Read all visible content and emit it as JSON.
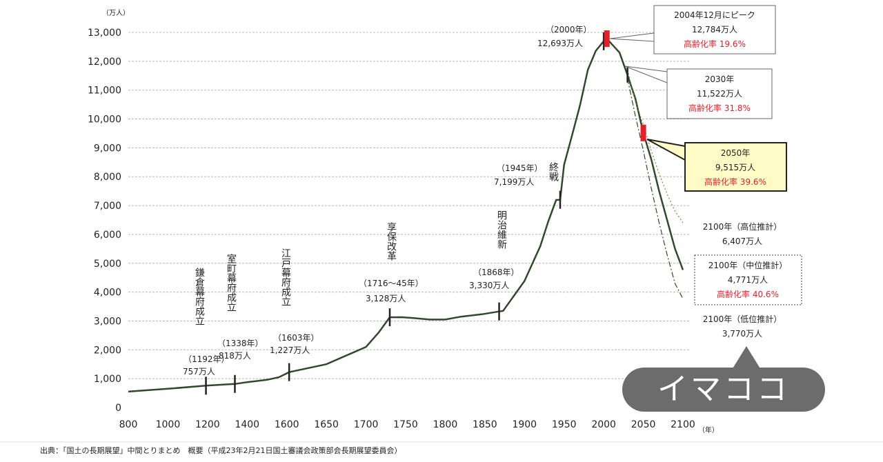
{
  "chart_data": {
    "type": "line",
    "ylabel_unit": "（万人）",
    "xlabel_unit": "（年）",
    "x_ticks": [
      "800",
      "1000",
      "1200",
      "1400",
      "1600",
      "1650",
      "1700",
      "1750",
      "1800",
      "1850",
      "1900",
      "1950",
      "2000",
      "2050",
      "2100"
    ],
    "y_ticks": [
      "0",
      "1,000",
      "2,000",
      "3,000",
      "4,000",
      "5,000",
      "6,000",
      "7,000",
      "8,000",
      "9,000",
      "10,000",
      "11,000",
      "12,000",
      "13,000"
    ],
    "ylim": [
      0,
      13000
    ],
    "grid": true,
    "series": [
      {
        "style": "solid",
        "points": [
          [
            800,
            551
          ],
          [
            1000,
            650
          ],
          [
            1192,
            757
          ],
          [
            1338,
            818
          ],
          [
            1400,
            880
          ],
          [
            1500,
            960
          ],
          [
            1560,
            1050
          ],
          [
            1603,
            1227
          ],
          [
            1650,
            1500
          ],
          [
            1700,
            2100
          ],
          [
            1716,
            2600
          ],
          [
            1730,
            3128
          ],
          [
            1745,
            3130
          ],
          [
            1760,
            3100
          ],
          [
            1780,
            3050
          ],
          [
            1800,
            3050
          ],
          [
            1820,
            3150
          ],
          [
            1846,
            3230
          ],
          [
            1868,
            3330
          ],
          [
            1873,
            3350
          ],
          [
            1890,
            4000
          ],
          [
            1900,
            4385
          ],
          [
            1920,
            5596
          ],
          [
            1930,
            6445
          ],
          [
            1940,
            7193
          ],
          [
            1945,
            7199
          ],
          [
            1950,
            8411
          ],
          [
            1960,
            9430
          ],
          [
            1970,
            10467
          ],
          [
            1980,
            11706
          ],
          [
            1990,
            12361
          ],
          [
            2000,
            12693
          ],
          [
            2004,
            12784
          ],
          [
            2010,
            12600
          ],
          [
            2020,
            12300
          ],
          [
            2030,
            11522
          ],
          [
            2040,
            10700
          ],
          [
            2050,
            9515
          ],
          [
            2060,
            8600
          ],
          [
            2070,
            7500
          ],
          [
            2080,
            6500
          ],
          [
            2090,
            5500
          ],
          [
            2100,
            4771
          ]
        ]
      },
      {
        "style": "dotted",
        "points": [
          [
            2030,
            11700
          ],
          [
            2040,
            10600
          ],
          [
            2050,
            9800
          ],
          [
            2060,
            8900
          ],
          [
            2070,
            8100
          ],
          [
            2080,
            7400
          ],
          [
            2090,
            6800
          ],
          [
            2100,
            6407
          ]
        ]
      },
      {
        "style": "dashdot",
        "points": [
          [
            2030,
            11400
          ],
          [
            2040,
            10100
          ],
          [
            2050,
            8900
          ],
          [
            2060,
            7600
          ],
          [
            2070,
            6400
          ],
          [
            2080,
            5300
          ],
          [
            2090,
            4300
          ],
          [
            2100,
            3770
          ]
        ]
      }
    ],
    "events": [
      {
        "label": "鎌倉幕府成立",
        "year_text": "（1192年）",
        "value_text": "757万人"
      },
      {
        "label": "室町幕府成立",
        "year_text": "（1338年）",
        "value_text": "818万人"
      },
      {
        "label": "江戸幕府成立",
        "year_text": "（1603年）",
        "value_text": "1,227万人"
      },
      {
        "label": "享保改革",
        "year_text": "（1716〜45年）",
        "value_text": "3,128万人"
      },
      {
        "label": "明治維新",
        "year_text": "（1868年）",
        "value_text": "3,330万人"
      },
      {
        "label": "終戦",
        "year_text": "（1945年）",
        "value_text": "7,199万人"
      },
      {
        "label": "",
        "year_text": "（2000年）",
        "value_text": "12,693万人"
      }
    ],
    "callouts": {
      "peak": {
        "line1": "2004年12月にピーク",
        "line2": "12,784万人",
        "line3": "高齢化率 19.6%"
      },
      "y2030": {
        "line1": "2030年",
        "line2": "11,522万人",
        "line3": "高齢化率 31.8%"
      },
      "y2050": {
        "line1": "2050年",
        "line2": "9,515万人",
        "line3": "高齢化率 39.6%"
      },
      "high2100": {
        "line1": "2100年（高位推計）",
        "line2": "6,407万人"
      },
      "mid2100": {
        "line1": "2100年（中位推計）",
        "line2": "4,771万人",
        "line3": "高齢化率 40.6%"
      },
      "low2100": {
        "line1": "2100年（低位推計）",
        "line2": "3,770万人"
      }
    },
    "source": "出典：「国土の長期展望」中間とりまとめ　概要（平成23年2月21日国土審議会政策部会長期展望委員会）"
  },
  "badge": {
    "label": "イマココ"
  },
  "colors": {
    "line": "#2f4a2a",
    "marker": "#e0202a",
    "highlight_fill": "#fffbc6",
    "bubble": "#6c6c6c"
  }
}
